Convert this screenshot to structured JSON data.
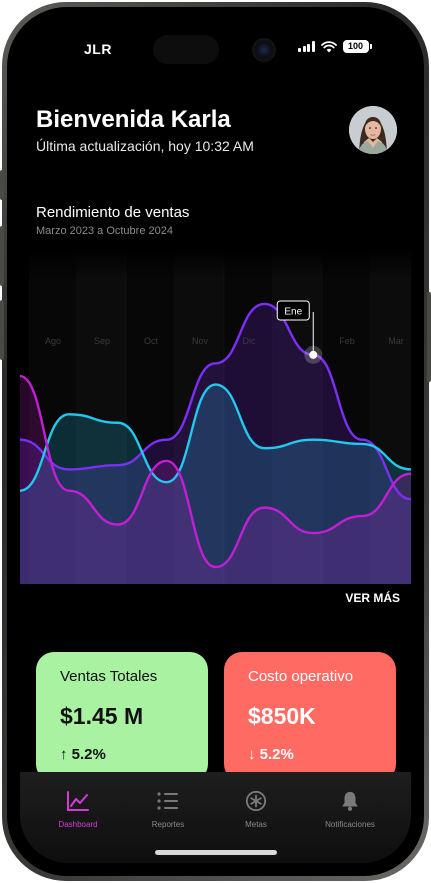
{
  "status_bar": {
    "carrier": "JLR",
    "battery": "100"
  },
  "header": {
    "greeting": "Bienvenida Karla",
    "updated": "Última actualización, hoy 10:32 AM"
  },
  "chart_section": {
    "title": "Rendimiento de ventas",
    "subtitle": "Marzo 2023 a Octubre 2024",
    "more_button": "VER MÁS"
  },
  "chart_data": {
    "type": "area",
    "title": "Rendimiento de ventas",
    "subtitle": "Marzo 2023 a Octubre 2024",
    "x_labels": [
      "Ago",
      "Sep",
      "Oct",
      "Nov",
      "Dic",
      "Ene",
      "Feb",
      "Mar"
    ],
    "highlighted_label": "Ene",
    "series": [
      {
        "color": "#7b2ff7",
        "values": [
          22,
          15,
          16,
          22,
          40,
          54,
          42,
          22,
          8
        ]
      },
      {
        "color": "#22c8f0",
        "values": [
          10,
          28,
          26,
          12,
          35,
          20,
          22,
          21,
          15
        ]
      },
      {
        "color": "#c21fd4",
        "values": [
          37,
          10,
          2,
          17,
          -8,
          6,
          0,
          4,
          14
        ]
      }
    ],
    "ylim": [
      -12,
      62
    ]
  },
  "cards": [
    {
      "label": "Ventas Totales",
      "value": "$1.45 M",
      "change": "5.2%",
      "direction": "up",
      "color": "#a9f2a2"
    },
    {
      "label": "Costo operativo",
      "value": "$850K",
      "change": "5.2%",
      "direction": "down",
      "color": "#ff6b63"
    }
  ],
  "tabs": [
    {
      "label": "Dashboard",
      "icon": "chart-line-icon",
      "active": true
    },
    {
      "label": "Reportes",
      "icon": "list-icon",
      "active": false
    },
    {
      "label": "Metas",
      "icon": "target-icon",
      "active": false
    },
    {
      "label": "Notificaciones",
      "icon": "bell-icon",
      "active": false
    }
  ],
  "colors": {
    "accent": "#d63bd8",
    "background": "#000000"
  }
}
